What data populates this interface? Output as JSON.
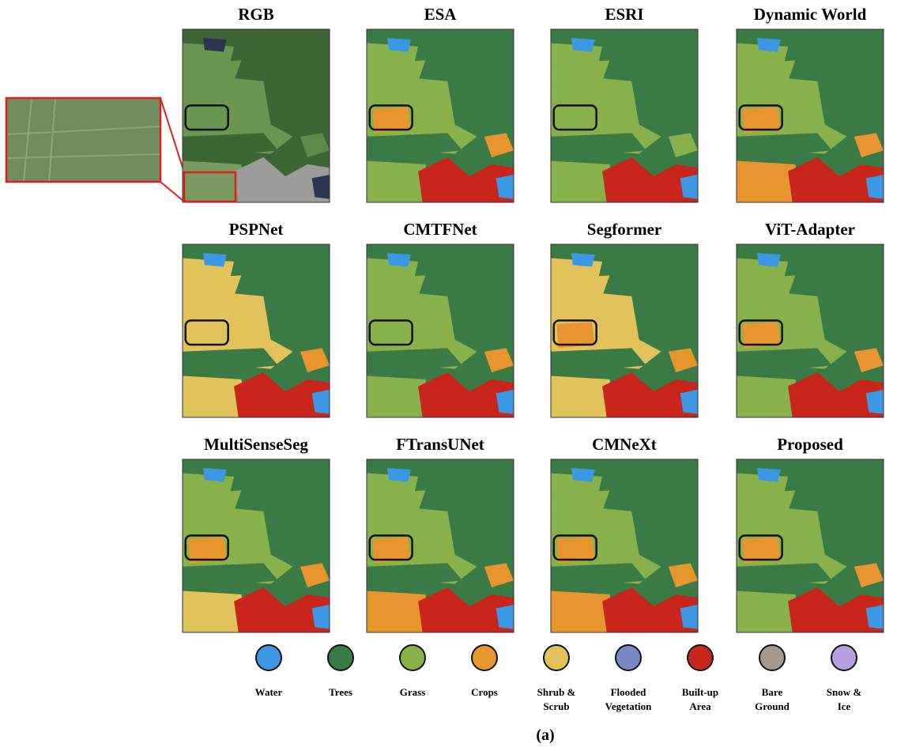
{
  "panels": [
    {
      "title": "RGB"
    },
    {
      "title": "ESA"
    },
    {
      "title": "ESRI"
    },
    {
      "title": "Dynamic World"
    },
    {
      "title": "PSPNet"
    },
    {
      "title": "CMTFNet"
    },
    {
      "title": "Segformer"
    },
    {
      "title": "ViT-Adapter"
    },
    {
      "title": "MultiSenseSeg"
    },
    {
      "title": "FTransUNet"
    },
    {
      "title": "CMNeXt"
    },
    {
      "title": "Proposed"
    }
  ],
  "legend": [
    {
      "label": [
        "Water"
      ],
      "color": "#3d98e3"
    },
    {
      "label": [
        "Trees"
      ],
      "color": "#3a7a45"
    },
    {
      "label": [
        "Grass"
      ],
      "color": "#88b04b"
    },
    {
      "label": [
        "Crops"
      ],
      "color": "#e8952f"
    },
    {
      "label": [
        "Shrub &",
        "Scrub"
      ],
      "color": "#e2c25a"
    },
    {
      "label": [
        "Flooded",
        "Vegetation"
      ],
      "color": "#7b88c8"
    },
    {
      "label": [
        "Built-up",
        "Area"
      ],
      "color": "#c8261d"
    },
    {
      "label": [
        "Bare",
        "Ground"
      ],
      "color": "#a39a8c"
    },
    {
      "label": [
        "Snow &",
        "Ice"
      ],
      "color": "#b69fe0"
    }
  ],
  "caption": "(a)"
}
